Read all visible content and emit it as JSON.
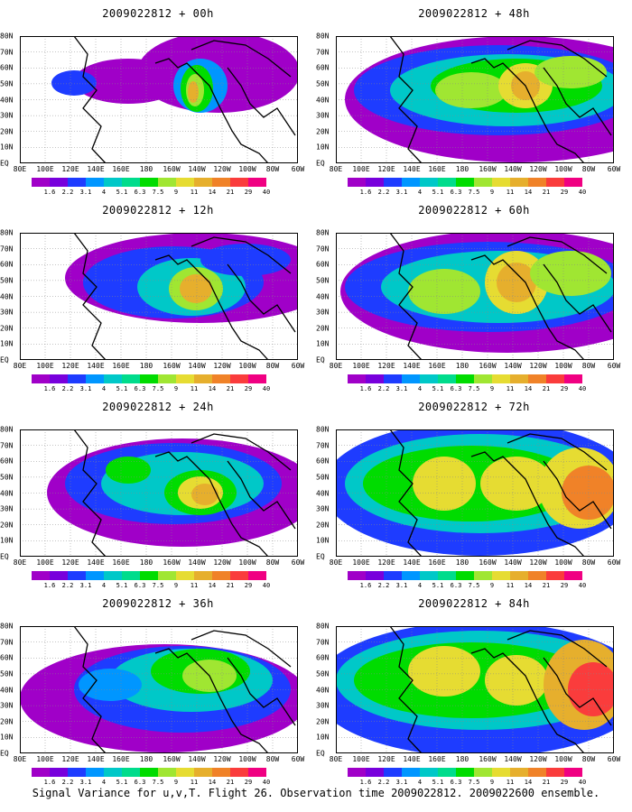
{
  "panels": [
    {
      "title": "2009022812 + 00h",
      "lead_h": 0
    },
    {
      "title": "2009022812 + 48h",
      "lead_h": 48
    },
    {
      "title": "2009022812 + 12h",
      "lead_h": 12
    },
    {
      "title": "2009022812 + 60h",
      "lead_h": 60
    },
    {
      "title": "2009022812 + 24h",
      "lead_h": 24
    },
    {
      "title": "2009022812 + 72h",
      "lead_h": 72
    },
    {
      "title": "2009022812 + 36h",
      "lead_h": 36
    },
    {
      "title": "2009022812 + 84h",
      "lead_h": 84
    }
  ],
  "x_ticks": [
    "80E",
    "100E",
    "120E",
    "140E",
    "160E",
    "180",
    "160W",
    "140W",
    "120W",
    "100W",
    "80W",
    "60W"
  ],
  "y_ticks": [
    "80N",
    "70N",
    "60N",
    "50N",
    "40N",
    "30N",
    "20N",
    "10N",
    "EQ"
  ],
  "colorbar": {
    "labels": [
      "1.6",
      "2.2",
      "3.1",
      "4",
      "5.1",
      "6.3",
      "7.5",
      "9",
      "11",
      "14",
      "21",
      "29",
      "40"
    ],
    "colors": [
      "#a000c8",
      "#7800dc",
      "#1e3cff",
      "#0096ff",
      "#00c8c8",
      "#00dc8c",
      "#00dc00",
      "#a0e632",
      "#e6dc32",
      "#e6af2d",
      "#f08228",
      "#fa3c3c",
      "#f00082"
    ]
  },
  "caption": "Signal Variance for u,v,T. Flight 26. Observation time 2009022812. 2009022600 ensemble.",
  "chart_data": [
    {
      "type": "heatmap",
      "title": "2009022812 + 00h",
      "x_range": [
        "80E",
        "60W"
      ],
      "y_range": [
        "EQ",
        "80N"
      ],
      "grid": true,
      "max_level": "14",
      "max_location": "near 140W 50N"
    },
    {
      "type": "heatmap",
      "title": "2009022812 + 48h",
      "x_range": [
        "80E",
        "60W"
      ],
      "y_range": [
        "EQ",
        "80N"
      ],
      "grid": true,
      "max_level": "14",
      "max_location": "near 140W 50N"
    },
    {
      "type": "heatmap",
      "title": "2009022812 + 12h",
      "x_range": [
        "80E",
        "60W"
      ],
      "y_range": [
        "EQ",
        "80N"
      ],
      "grid": true,
      "max_level": "14",
      "max_location": "near 140W 45N"
    },
    {
      "type": "heatmap",
      "title": "2009022812 + 60h",
      "x_range": [
        "80E",
        "60W"
      ],
      "y_range": [
        "EQ",
        "80N"
      ],
      "grid": true,
      "max_level": "14",
      "max_location": "near 140W 45N"
    },
    {
      "type": "heatmap",
      "title": "2009022812 + 24h",
      "x_range": [
        "80E",
        "60W"
      ],
      "y_range": [
        "EQ",
        "80N"
      ],
      "grid": true,
      "max_level": "14",
      "max_location": "near 130W 45N"
    },
    {
      "type": "heatmap",
      "title": "2009022812 + 72h",
      "x_range": [
        "80E",
        "60W"
      ],
      "y_range": [
        "EQ",
        "80N"
      ],
      "grid": true,
      "max_level": "14",
      "max_location": "near 70W 45N"
    },
    {
      "type": "heatmap",
      "title": "2009022812 + 36h",
      "x_range": [
        "80E",
        "60W"
      ],
      "y_range": [
        "EQ",
        "80N"
      ],
      "grid": true,
      "max_level": "11",
      "max_location": "near 130W 50N"
    },
    {
      "type": "heatmap",
      "title": "2009022812 + 84h",
      "x_range": [
        "80E",
        "60W"
      ],
      "y_range": [
        "EQ",
        "80N"
      ],
      "grid": true,
      "max_level": "21",
      "max_location": "near 65W 40N"
    }
  ]
}
